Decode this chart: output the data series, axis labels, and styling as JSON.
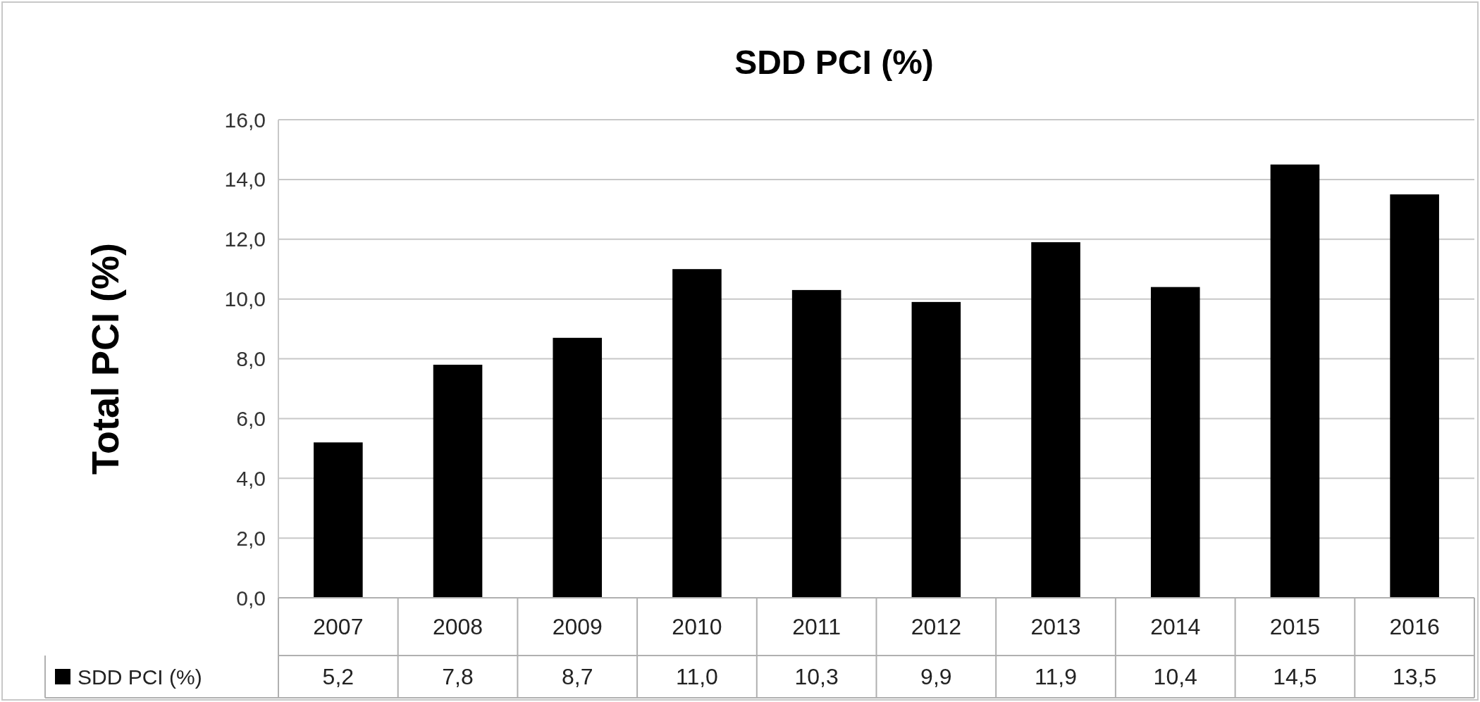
{
  "chart_data": {
    "type": "bar",
    "title": "SDD PCI (%)",
    "ylabel": "Total PCI (%)",
    "categories": [
      "2007",
      "2008",
      "2009",
      "2010",
      "2011",
      "2012",
      "2013",
      "2014",
      "2015",
      "2016"
    ],
    "series": [
      {
        "name": "SDD PCI (%)",
        "color": "#000000",
        "values": [
          5.2,
          7.8,
          8.7,
          11.0,
          10.3,
          9.9,
          11.9,
          10.4,
          14.5,
          13.5
        ],
        "value_labels": [
          "5,2",
          "7,8",
          "8,7",
          "11,0",
          "10,3",
          "9,9",
          "11,9",
          "10,4",
          "14,5",
          "13,5"
        ]
      }
    ],
    "ylim": [
      0,
      16
    ],
    "yticks": [
      {
        "value": 0,
        "label": "0,0"
      },
      {
        "value": 2,
        "label": "2,0"
      },
      {
        "value": 4,
        "label": "4,0"
      },
      {
        "value": 6,
        "label": "6,0"
      },
      {
        "value": 8,
        "label": "8,0"
      },
      {
        "value": 10,
        "label": "10,0"
      },
      {
        "value": 12,
        "label": "12,0"
      },
      {
        "value": 14,
        "label": "14,0"
      },
      {
        "value": 16,
        "label": "16,0"
      }
    ],
    "grid": "y"
  }
}
